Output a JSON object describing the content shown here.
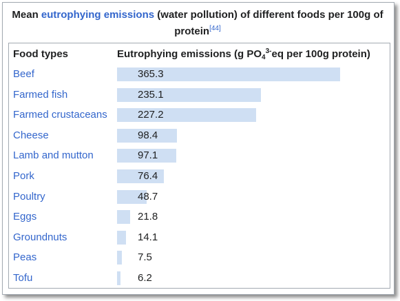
{
  "caption": {
    "prefix": "Mean ",
    "link": "eutrophying emissions",
    "suffix": " (water pollution) of different foods per 100g of protein",
    "ref": "[44]"
  },
  "header": {
    "food_types": "Food types",
    "emissions_prefix": "Eutrophying emissions (g PO",
    "sub": "4",
    "sup": "3-",
    "emissions_suffix": "eq per 100g protein)"
  },
  "chart_data": {
    "type": "bar",
    "orientation": "horizontal",
    "categories": [
      "Beef",
      "Farmed fish",
      "Farmed crustaceans",
      "Cheese",
      "Lamb and mutton",
      "Pork",
      "Poultry",
      "Eggs",
      "Groundnuts",
      "Peas",
      "Tofu"
    ],
    "values": [
      365.3,
      235.1,
      227.2,
      98.4,
      97.1,
      76.4,
      48.7,
      21.8,
      14.1,
      7.5,
      6.2
    ],
    "value_labels": [
      "365.3",
      "235.1",
      "227.2",
      "98.4",
      "97.1",
      "76.4",
      "48.7",
      "21.8",
      "14.1",
      "7.5",
      "6.2"
    ],
    "title": "Mean eutrophying emissions (water pollution) of different foods per 100g of protein",
    "xlabel": "Eutrophying emissions (g PO4 3-eq per 100g protein)",
    "ylabel": "Food types",
    "xlim": [
      0,
      365.3
    ],
    "bar_color": "#cfdff3",
    "grid": false
  },
  "colors": {
    "link": "#3366cc",
    "text": "#202122",
    "border": "#a2a9b1"
  }
}
